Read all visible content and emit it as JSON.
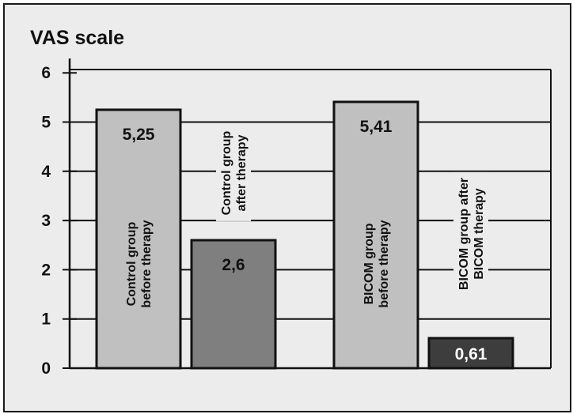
{
  "chart_data": {
    "type": "bar",
    "title": "",
    "ylabel": "VAS scale",
    "xlabel": "",
    "ylim": [
      0,
      6
    ],
    "yticks": [
      "0",
      "1",
      "2",
      "3",
      "4",
      "5",
      "6"
    ],
    "grid": true,
    "categories": [
      [
        "Control group",
        "before therapy"
      ],
      [
        "Control group",
        "after therapy"
      ],
      [
        "BICOM group",
        "before therapy"
      ],
      [
        "BICOM group after",
        "BICOM therapy"
      ]
    ],
    "values": [
      5.25,
      2.6,
      5.41,
      0.61
    ],
    "value_labels": [
      "5,25",
      "2,6",
      "5,41",
      "0,61"
    ],
    "colors": {
      "light_bar": "#c0c0c0",
      "mid_bar": "#7f7f7f",
      "dark_bar": "#3d3d3d",
      "background": "#ececec",
      "grid": "#111111"
    }
  }
}
